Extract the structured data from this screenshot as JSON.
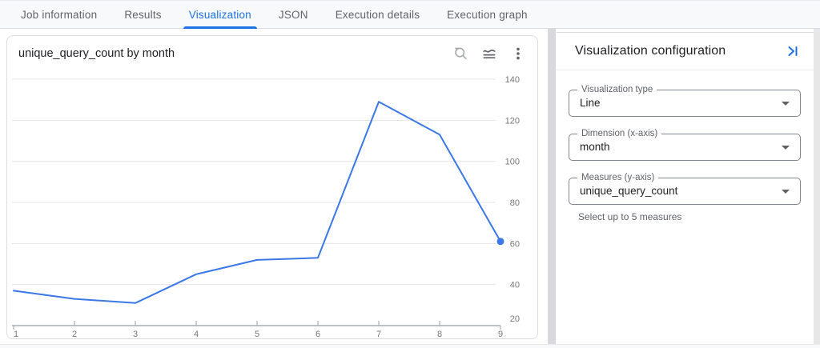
{
  "tabs": {
    "active": "Visualization",
    "items": [
      {
        "label": "Job information"
      },
      {
        "label": "Results"
      },
      {
        "label": "Visualization"
      },
      {
        "label": "JSON"
      },
      {
        "label": "Execution details"
      },
      {
        "label": "Execution graph"
      }
    ]
  },
  "chart_card": {
    "title": "unique_query_count by month",
    "toolbar_icons": [
      "zoom-reset",
      "series-toggle",
      "more-options"
    ]
  },
  "chart_data": {
    "type": "line",
    "title": "unique_query_count by month",
    "x": [
      1,
      2,
      3,
      4,
      5,
      6,
      7,
      8,
      9
    ],
    "xlabel": "month",
    "series": [
      {
        "name": "unique_query_count",
        "values": [
          37,
          33,
          31,
          45,
          52,
          53,
          129,
          113,
          61
        ]
      }
    ],
    "ylim": [
      20,
      140
    ],
    "yticks": [
      20,
      40,
      60,
      80,
      100,
      120,
      140
    ],
    "grid": true,
    "legend": "none",
    "line_color": "#3b78e7",
    "end_point_marker": true
  },
  "config_panel": {
    "title": "Visualization configuration",
    "fields": [
      {
        "label": "Visualization type",
        "value": "Line"
      },
      {
        "label": "Dimension (x-axis)",
        "value": "month"
      },
      {
        "label": "Measures (y-axis)",
        "value": "unique_query_count",
        "hint": "Select up to 5 measures"
      }
    ]
  },
  "colors": {
    "accent": "#1a73e8",
    "line": "#3b78e7",
    "tab_inactive": "#5f6368",
    "grid": "#e4e4e7",
    "axis": "#aaadb2",
    "axis_label": "#76777b"
  }
}
